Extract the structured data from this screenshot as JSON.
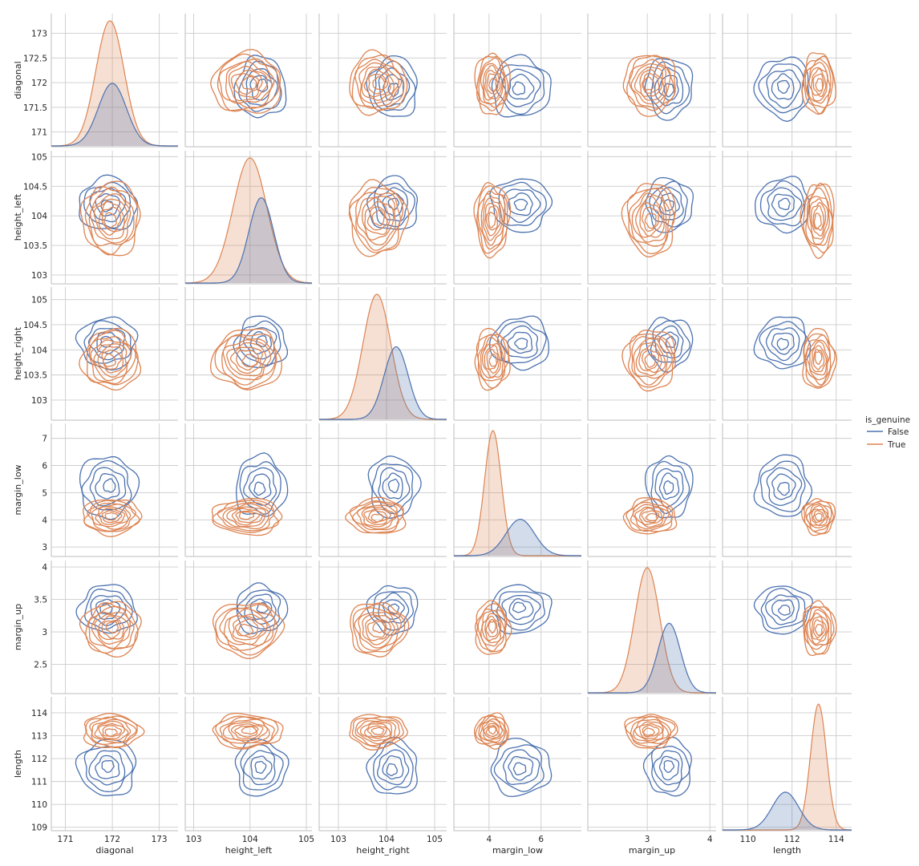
{
  "chart_data": {
    "type": "pairplot",
    "variables": [
      "diagonal",
      "height_left",
      "height_right",
      "margin_low",
      "margin_up",
      "length"
    ],
    "hue": "is_genuine",
    "diag_kind": "kde",
    "offdiag_kind": "kde",
    "grid": true,
    "legend": {
      "title": "is_genuine",
      "placement": "right",
      "entries": [
        "False",
        "True"
      ]
    },
    "colors": {
      "False": "#4c72b0",
      "True": "#dd8452"
    },
    "axes": {
      "diagonal": {
        "lim": [
          170.7,
          173.4
        ],
        "ticks": [
          171,
          172,
          173
        ],
        "yticks": [
          171.0,
          171.5,
          172.0,
          172.5,
          173.0
        ]
      },
      "height_left": {
        "lim": [
          102.85,
          105.1
        ],
        "ticks": [
          103,
          104,
          105
        ],
        "yticks": [
          103.0,
          103.5,
          104.0,
          104.5,
          105.0
        ]
      },
      "height_right": {
        "lim": [
          102.6,
          105.25
        ],
        "ticks": [
          103,
          104,
          105
        ],
        "yticks": [
          103.0,
          103.5,
          104.0,
          104.5,
          105.0
        ]
      },
      "margin_low": {
        "lim": [
          2.65,
          7.55
        ],
        "ticks": [
          4,
          6
        ],
        "yticks": [
          3,
          4,
          5,
          6,
          7
        ]
      },
      "margin_up": {
        "lim": [
          2.05,
          4.1
        ],
        "ticks": [
          3,
          4
        ],
        "yticks": [
          2.5,
          3.0,
          3.5,
          4.0
        ]
      },
      "length": {
        "lim": [
          108.85,
          114.7
        ],
        "ticks": [
          110,
          112,
          114
        ],
        "yticks": [
          109,
          110,
          111,
          112,
          113,
          114
        ]
      }
    },
    "groups": {
      "False": {
        "mean": {
          "diagonal": 171.9,
          "height_left": 104.19,
          "height_right": 104.14,
          "margin_low": 5.22,
          "margin_up": 3.35,
          "length": 111.6
        },
        "sd": {
          "diagonal": 0.3,
          "height_left": 0.22,
          "height_right": 0.25,
          "margin_low": 0.55,
          "margin_up": 0.18,
          "length": 0.6
        },
        "diag_peak": {
          "diagonal": 172.0,
          "height_left": 104.2,
          "height_right": 104.2,
          "margin_low": 5.2,
          "margin_up": 3.35,
          "length": 111.7
        }
      },
      "True": {
        "mean": {
          "diagonal": 171.98,
          "height_left": 103.95,
          "height_right": 103.81,
          "margin_low": 4.12,
          "margin_up": 3.05,
          "length": 113.2
        },
        "sd": {
          "diagonal": 0.3,
          "height_left": 0.3,
          "height_right": 0.29,
          "margin_low": 0.32,
          "margin_up": 0.2,
          "length": 0.36
        },
        "diag_peak": {
          "diagonal": 171.95,
          "height_left": 104.0,
          "height_right": 103.8,
          "margin_low": 4.15,
          "margin_up": 3.0,
          "length": 113.2
        }
      }
    }
  }
}
